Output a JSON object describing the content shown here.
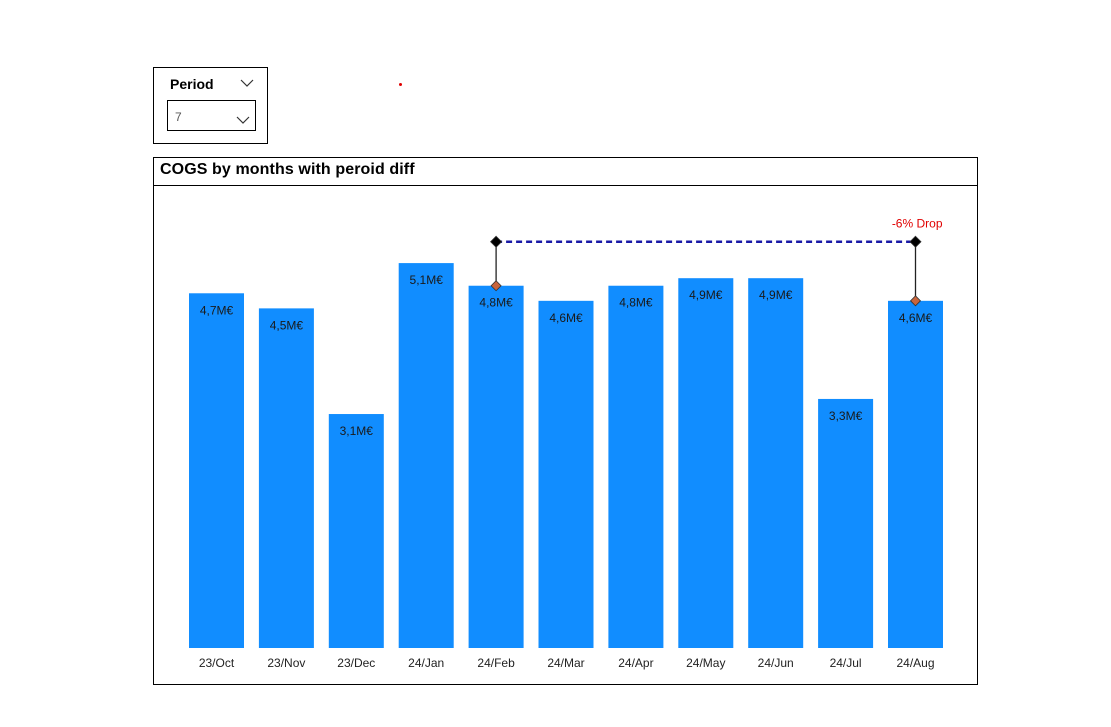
{
  "slicer": {
    "title": "Period",
    "selected_value": "7"
  },
  "chart_data": {
    "type": "bar",
    "title": "COGS by months with peroid diff",
    "categories": [
      "23/Oct",
      "23/Nov",
      "23/Dec",
      "24/Jan",
      "24/Feb",
      "24/Mar",
      "24/Apr",
      "24/May",
      "24/Jun",
      "24/Jul",
      "24/Aug"
    ],
    "values": [
      4.7,
      4.5,
      3.1,
      5.1,
      4.8,
      4.6,
      4.8,
      4.9,
      4.9,
      3.3,
      4.6
    ],
    "data_labels": [
      "4,7M€",
      "4,5M€",
      "3,1M€",
      "5,1M€",
      "4,8M€",
      "4,6M€",
      "4,8M€",
      "4,9M€",
      "4,9M€",
      "3,3M€",
      "4,6M€"
    ],
    "unit": "M€",
    "ylim": [
      0,
      5.3
    ],
    "bar_color": "#118DFF",
    "grid": false,
    "period_diff": {
      "from": "24/Feb",
      "to": "24/Aug",
      "label": "-6% Drop",
      "label_color": "#E00000",
      "line_color": "#1A1AA6",
      "marker_color": "#C8643C"
    }
  }
}
